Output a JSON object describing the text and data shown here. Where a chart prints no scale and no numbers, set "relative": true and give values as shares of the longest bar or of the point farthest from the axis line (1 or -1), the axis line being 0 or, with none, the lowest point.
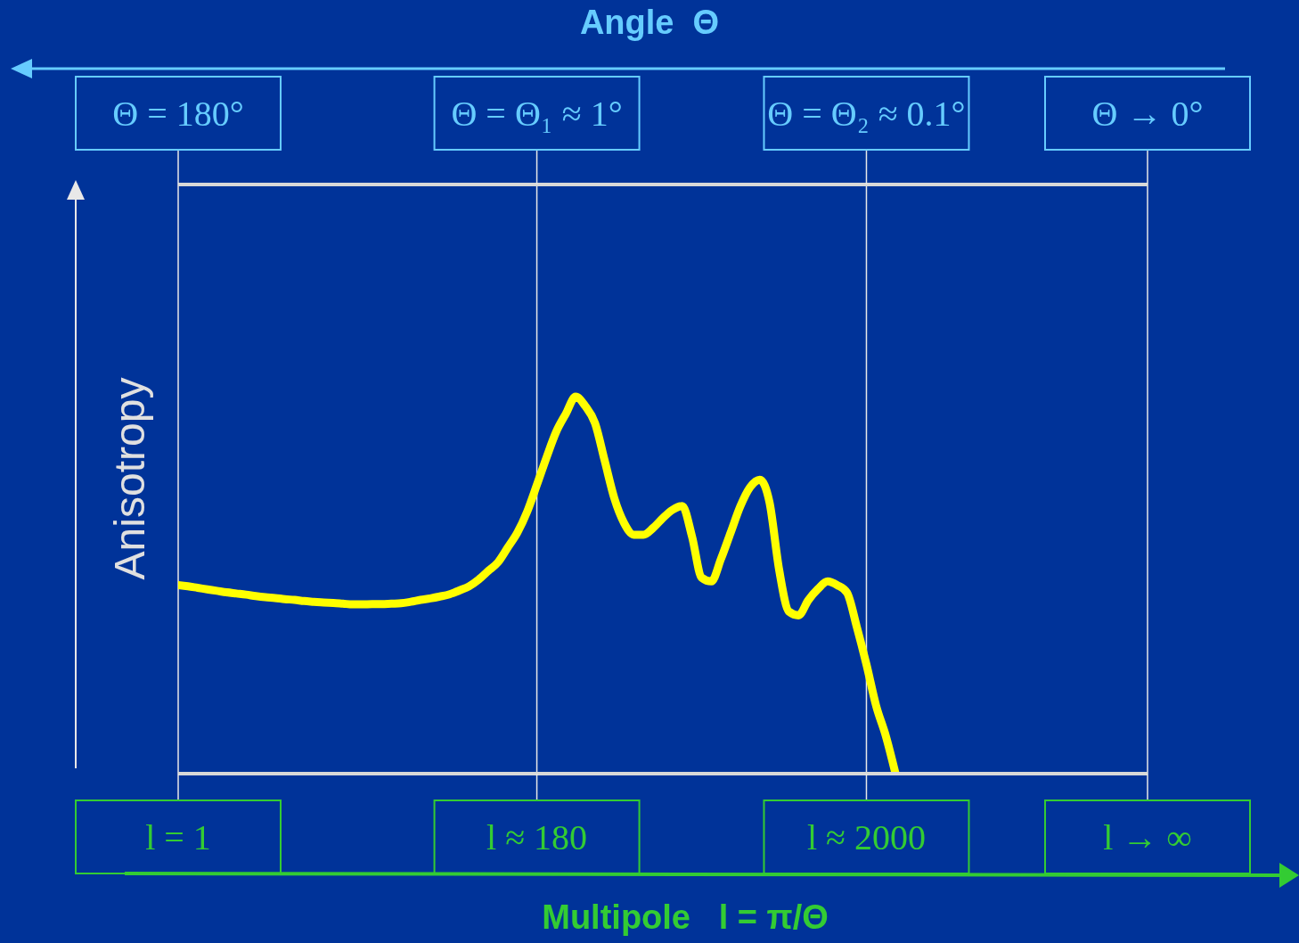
{
  "chart_data": {
    "type": "line",
    "relative": true,
    "x2label": "Angle  Θ",
    "xlabel": "Multipole   l = π/Θ",
    "ylabel": "Anisotropy",
    "categories": [
      "l = 1",
      null,
      null,
      null,
      null,
      null,
      null,
      null,
      null,
      null,
      null,
      null,
      null,
      null,
      null,
      null,
      null,
      null,
      null,
      null,
      null,
      null,
      null,
      null,
      null,
      null,
      null,
      null,
      null,
      null,
      null,
      null,
      null,
      null,
      null,
      null,
      null,
      "l ≈ 180",
      null,
      null,
      null,
      null,
      null,
      null,
      null,
      null,
      null,
      null,
      null,
      null,
      null,
      null,
      null,
      null,
      null,
      null,
      null,
      null,
      null,
      null,
      null,
      null,
      null,
      null,
      null,
      null,
      null,
      null,
      null,
      null,
      null,
      "l ≈ 2000",
      null,
      null,
      null,
      null,
      null,
      null,
      null,
      null,
      null,
      null,
      null,
      null,
      null,
      null,
      null,
      null,
      null,
      null,
      null,
      null,
      null,
      null,
      null,
      null,
      null,
      null,
      null,
      null,
      "l → ∞"
    ],
    "annotations": [
      "Θ = 180°",
      "Θ = Θ₁ ≈ 1°",
      "Θ = Θ₂ ≈ 0.1°",
      "Θ → 0°"
    ],
    "grid": "x",
    "marker": "none",
    "line_style": "solid",
    "series": [
      {
        "color": "#ffff00",
        "values": [
          0.5,
          0.497,
          0.493,
          0.489,
          0.485,
          0.481,
          0.478,
          0.475,
          0.471,
          0.468,
          0.466,
          0.463,
          0.461,
          0.458,
          0.456,
          0.454,
          0.453,
          0.451,
          0.449,
          0.449,
          0.45,
          0.45,
          0.451,
          0.452,
          0.456,
          0.461,
          0.465,
          0.47,
          0.476,
          0.486,
          0.497,
          0.515,
          0.538,
          0.561,
          0.6,
          0.64,
          0.695,
          0.766,
          0.839,
          0.907,
          0.955,
          1,
          0.975,
          0.93,
          0.83,
          0.73,
          0.665,
          0.634,
          0.634,
          0.652,
          0.678,
          0.7,
          0.71,
          0.63,
          0.52,
          0.51,
          0.57,
          0.64,
          0.71,
          0.76,
          0.78,
          0.72,
          0.54,
          0.43,
          0.42,
          0.46,
          0.49,
          0.51,
          0.5,
          0.48,
          0.39,
          0.29,
          0.18,
          0.1,
          0,
          null,
          null,
          null,
          null,
          null,
          null,
          null,
          null,
          null,
          null,
          null,
          null,
          null,
          null,
          null,
          null,
          null,
          null,
          null,
          null,
          null,
          null,
          null,
          null,
          null,
          null
        ]
      }
    ]
  }
}
